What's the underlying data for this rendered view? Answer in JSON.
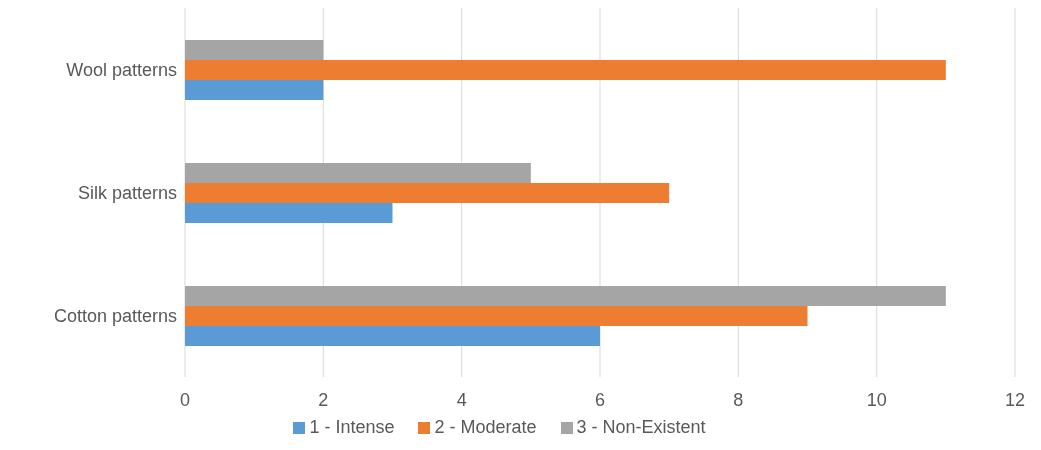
{
  "chart_data": {
    "type": "bar",
    "orientation": "horizontal",
    "categories": [
      "Wool patterns",
      "Silk patterns",
      "Cotton patterns"
    ],
    "series": [
      {
        "name": "3 - Non-Existent",
        "color": "#a5a5a5",
        "values": [
          2,
          5,
          11
        ]
      },
      {
        "name": "2 - Moderate",
        "color": "#ed7d31",
        "values": [
          11,
          7,
          9
        ]
      },
      {
        "name": "1 - Intense",
        "color": "#5b9bd5",
        "values": [
          2,
          3,
          6
        ]
      }
    ],
    "xlim": [
      0,
      12
    ],
    "xticks": [
      0,
      2,
      4,
      6,
      8,
      10,
      12
    ],
    "grid": "x",
    "legend": "bottom"
  }
}
